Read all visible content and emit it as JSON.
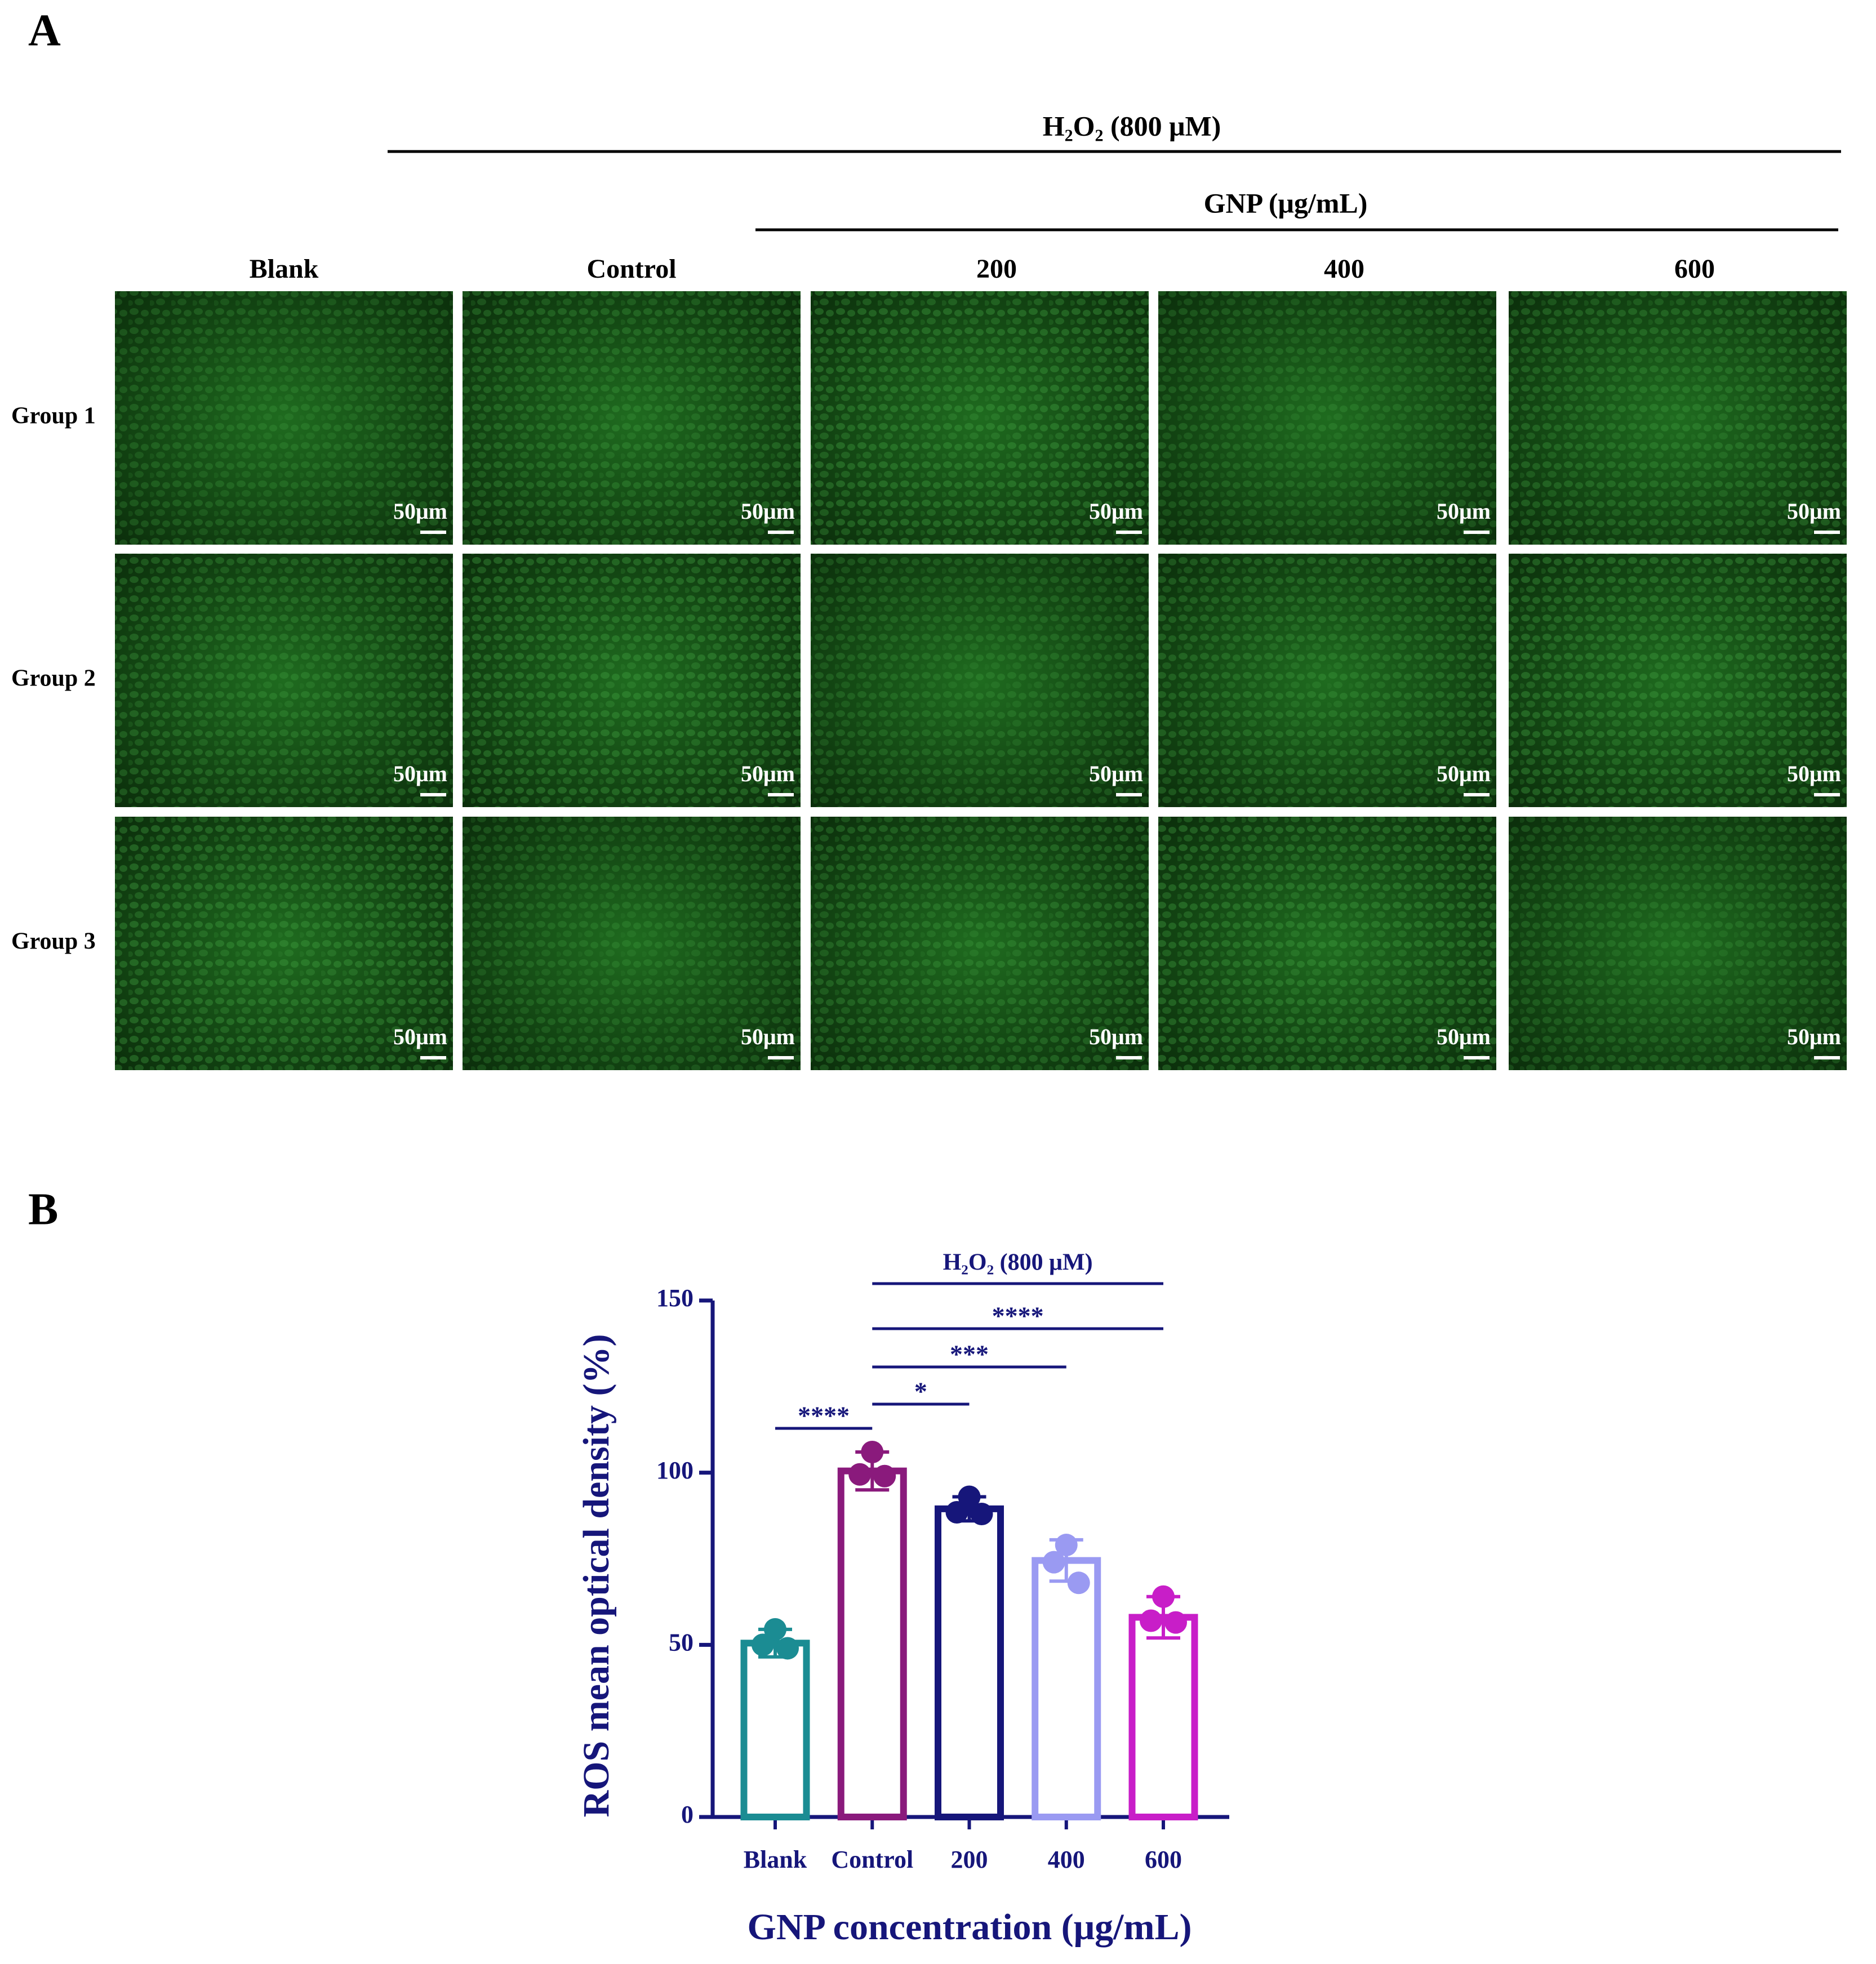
{
  "panel_a": {
    "label": "A",
    "treatment": "H₂O₂ (800 μM)",
    "dose_header": "GNP (μg/mL)",
    "columns": [
      "Blank",
      "Control",
      "200",
      "400",
      "600"
    ],
    "rows": [
      "Group 1",
      "Group 2",
      "Group 3"
    ],
    "scale_bar": "50μm"
  },
  "chart_data": {
    "type": "bar",
    "panel_label": "B",
    "x_label": "GNP concentration (μg/mL)",
    "y_label": "ROS mean optical density (%)",
    "categories": [
      "Blank",
      "Control",
      "200",
      "400",
      "600"
    ],
    "values": [
      50.5,
      100.5,
      89.5,
      74.5,
      58
    ],
    "errors": [
      4,
      5.5,
      3.5,
      6,
      6
    ],
    "points": [
      [
        54.5,
        50,
        49
      ],
      [
        106,
        99.5,
        99
      ],
      [
        93,
        88.5,
        88
      ],
      [
        79,
        74,
        68
      ],
      [
        64,
        57,
        56.5
      ]
    ],
    "colors": [
      "#1b8c93",
      "#8a1a7c",
      "#16167a",
      "#9a9af2",
      "#c81ec8"
    ],
    "ylim": [
      0,
      150
    ],
    "yticks": [
      0,
      50,
      100,
      150
    ],
    "treatment_label": "H₂O₂ (800 μM)",
    "comparisons": [
      {
        "label": "****",
        "groups": [
          "Control",
          "600"
        ]
      },
      {
        "label": "***",
        "groups": [
          "Control",
          "400"
        ]
      },
      {
        "label": "*",
        "groups": [
          "Control",
          "200"
        ]
      },
      {
        "label": "****",
        "groups": [
          "Blank",
          "Control"
        ]
      }
    ]
  }
}
